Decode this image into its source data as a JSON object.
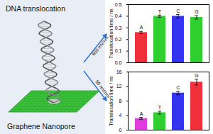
{
  "diagram": {
    "title": "DNA translocation",
    "label": "Graphene Nanopore"
  },
  "chart_data": [
    {
      "type": "bar",
      "annotation": "600 mV/nm",
      "categories": [
        "A",
        "T",
        "C",
        "G"
      ],
      "values": [
        0.26,
        0.4,
        0.4,
        0.39
      ],
      "error": [
        0.01,
        0.01,
        0.015,
        0.015
      ],
      "colors": [
        "#f0313b",
        "#2fcf2f",
        "#3333f0",
        "#2fcf2f"
      ],
      "y_label": "Translocation time / ns",
      "ylim": [
        0,
        0.5
      ],
      "yticks": [
        {
          "value": 0,
          "label": "0.0"
        },
        {
          "value": 0.1,
          "label": "0.1"
        },
        {
          "value": 0.2,
          "label": "0.2"
        },
        {
          "value": 0.3,
          "label": "0.3"
        },
        {
          "value": 0.4,
          "label": "0.4"
        },
        {
          "value": 0.5,
          "label": "0.5"
        }
      ],
      "tick_labels": "y"
    },
    {
      "type": "bar",
      "annotation": "50 mV/nm",
      "categories": [
        "A",
        "T",
        "C",
        "G"
      ],
      "values": [
        3.2,
        4.8,
        10.2,
        13.2
      ],
      "error": [
        0.3,
        0.4,
        0.5,
        0.8
      ],
      "colors": [
        "#e03ce0",
        "#2fcf2f",
        "#3333f0",
        "#f0313b"
      ],
      "y_label": "Translocation time / ns",
      "ylim": [
        0,
        16
      ],
      "yticks": [
        0,
        4,
        8,
        12,
        16
      ],
      "tick_labels": "y"
    }
  ]
}
